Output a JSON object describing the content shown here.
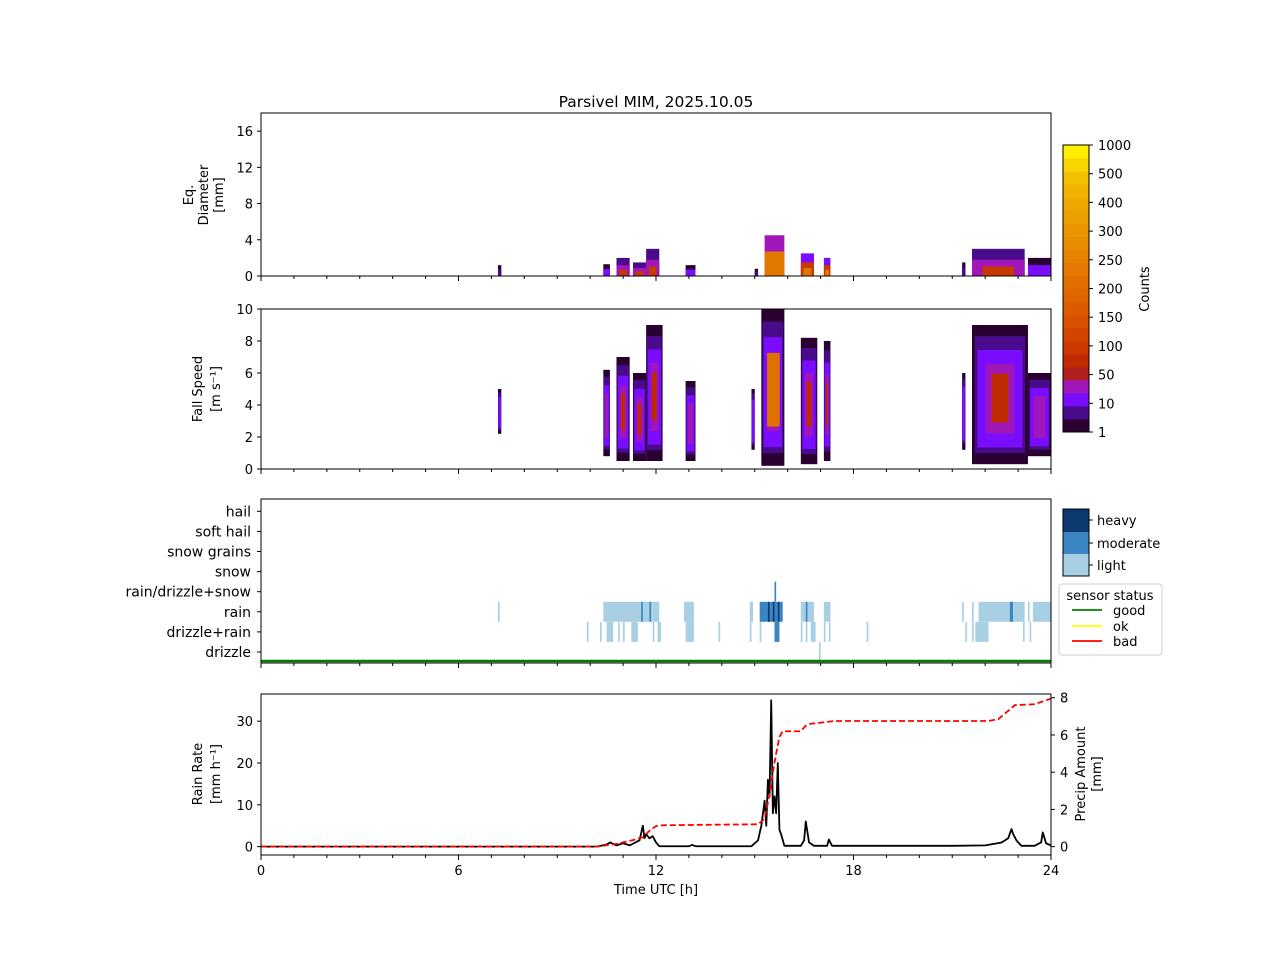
{
  "chart_data": [
    {
      "panel": "diameter",
      "type": "heatmap",
      "title": "Parsivel MIM, 2025.10.05",
      "ylabel": [
        "Eq.",
        "Diameter",
        "[mm]"
      ],
      "ylim": [
        0,
        18
      ],
      "yticks": [
        0,
        4,
        8,
        12,
        16
      ],
      "xlim": [
        0,
        24
      ],
      "events": [
        {
          "t0": 7.2,
          "t1": 7.3,
          "top": 1.2,
          "level": 1
        },
        {
          "t0": 10.4,
          "t1": 10.6,
          "top": 1.3,
          "level": 2
        },
        {
          "t0": 10.8,
          "t1": 11.2,
          "top": 2.0,
          "level": 3
        },
        {
          "t0": 11.3,
          "t1": 11.7,
          "top": 1.5,
          "level": 3
        },
        {
          "t0": 11.7,
          "t1": 12.1,
          "top": 3.0,
          "level": 3
        },
        {
          "t0": 12.9,
          "t1": 13.2,
          "top": 1.2,
          "level": 2
        },
        {
          "t0": 15.0,
          "t1": 15.1,
          "top": 0.8,
          "level": 1
        },
        {
          "t0": 15.3,
          "t1": 15.9,
          "top": 4.5,
          "level": 5
        },
        {
          "t0": 16.4,
          "t1": 16.8,
          "top": 2.5,
          "level": 4
        },
        {
          "t0": 17.1,
          "t1": 17.3,
          "top": 2.0,
          "level": 4
        },
        {
          "t0": 21.3,
          "t1": 21.4,
          "top": 1.5,
          "level": 1
        },
        {
          "t0": 21.6,
          "t1": 23.2,
          "top": 3.0,
          "level": 3
        },
        {
          "t0": 23.3,
          "t1": 24.0,
          "top": 2.0,
          "level": 2
        }
      ]
    },
    {
      "panel": "fall_speed",
      "type": "heatmap",
      "ylabel": [
        "Fall Speed",
        "[m s⁻¹]"
      ],
      "ylim": [
        0,
        10
      ],
      "yticks": [
        0,
        2,
        4,
        6,
        8,
        10
      ],
      "xlim": [
        0,
        24
      ],
      "events": [
        {
          "t0": 7.2,
          "t1": 7.3,
          "lo": 2.2,
          "hi": 5.0,
          "level": 1
        },
        {
          "t0": 10.4,
          "t1": 10.6,
          "lo": 0.8,
          "hi": 6.2,
          "level": 2
        },
        {
          "t0": 10.8,
          "t1": 11.2,
          "lo": 0.5,
          "hi": 7.0,
          "level": 3
        },
        {
          "t0": 11.3,
          "t1": 11.7,
          "lo": 0.5,
          "hi": 6.0,
          "level": 3
        },
        {
          "t0": 11.7,
          "t1": 12.2,
          "lo": 0.5,
          "hi": 9.0,
          "level": 3
        },
        {
          "t0": 12.9,
          "t1": 13.2,
          "lo": 0.5,
          "hi": 5.5,
          "level": 2
        },
        {
          "t0": 14.9,
          "t1": 15.0,
          "lo": 1.2,
          "hi": 5.0,
          "level": 1
        },
        {
          "t0": 15.2,
          "t1": 15.9,
          "lo": 0.2,
          "hi": 10.0,
          "level": 5
        },
        {
          "t0": 16.4,
          "t1": 16.9,
          "lo": 0.3,
          "hi": 8.2,
          "level": 4
        },
        {
          "t0": 17.1,
          "t1": 17.3,
          "lo": 0.5,
          "hi": 8.0,
          "level": 4
        },
        {
          "t0": 21.3,
          "t1": 21.4,
          "lo": 1.2,
          "hi": 6.0,
          "level": 1
        },
        {
          "t0": 21.6,
          "t1": 23.3,
          "lo": 0.3,
          "hi": 9.0,
          "level": 3
        },
        {
          "t0": 23.3,
          "t1": 24.0,
          "lo": 0.8,
          "hi": 6.0,
          "level": 2
        }
      ],
      "colorbar": {
        "label": "Counts",
        "ticks": [
          "1",
          "10",
          "50",
          "100",
          "150",
          "200",
          "250",
          "300",
          "400",
          "500",
          "1000"
        ],
        "colors": [
          "#2a0030",
          "#4a0a8c",
          "#7a0cff",
          "#a016b8",
          "#b01e1e",
          "#c02a00",
          "#cc3800",
          "#d24400",
          "#d85000",
          "#dc5a00",
          "#e06400",
          "#e26e00",
          "#e47800",
          "#e68200",
          "#e88c00",
          "#ea9600",
          "#eca000",
          "#eea800",
          "#f0b400",
          "#f2c000",
          "#f8d400",
          "#ffee00"
        ]
      }
    },
    {
      "panel": "precip_type",
      "type": "heatmap",
      "categories": [
        "drizzle",
        "drizzle+rain",
        "rain",
        "rain/drizzle+snow",
        "snow",
        "snow grains",
        "soft hail",
        "hail"
      ],
      "intensity_legend": [
        "heavy",
        "moderate",
        "light"
      ],
      "intensity_colors": {
        "light": "#a9cfe5",
        "moderate": "#3a86c2",
        "heavy": "#0c3a70"
      },
      "segments": [
        {
          "cat": 2,
          "t0": 7.2,
          "t1": 7.25,
          "i": "light"
        },
        {
          "cat": 2,
          "t0": 10.4,
          "t1": 11.9,
          "i": "light"
        },
        {
          "cat": 2,
          "t0": 11.55,
          "t1": 11.6,
          "i": "moderate"
        },
        {
          "cat": 2,
          "t0": 11.8,
          "t1": 11.85,
          "i": "moderate"
        },
        {
          "cat": 2,
          "t0": 11.9,
          "t1": 12.1,
          "i": "light"
        },
        {
          "cat": 2,
          "t0": 12.85,
          "t1": 13.15,
          "i": "light"
        },
        {
          "cat": 2,
          "t0": 14.85,
          "t1": 14.95,
          "i": "light"
        },
        {
          "cat": 2,
          "t0": 15.15,
          "t1": 15.85,
          "i": "moderate"
        },
        {
          "cat": 2,
          "t0": 15.4,
          "t1": 15.45,
          "i": "heavy"
        },
        {
          "cat": 2,
          "t0": 15.55,
          "t1": 15.6,
          "i": "heavy"
        },
        {
          "cat": 2,
          "t0": 15.7,
          "t1": 15.75,
          "i": "heavy"
        },
        {
          "cat": 2,
          "t0": 16.4,
          "t1": 16.8,
          "i": "light"
        },
        {
          "cat": 2,
          "t0": 16.55,
          "t1": 16.6,
          "i": "moderate"
        },
        {
          "cat": 2,
          "t0": 17.1,
          "t1": 17.3,
          "i": "light"
        },
        {
          "cat": 2,
          "t0": 21.3,
          "t1": 21.35,
          "i": "light"
        },
        {
          "cat": 2,
          "t0": 21.6,
          "t1": 21.65,
          "i": "light"
        },
        {
          "cat": 2,
          "t0": 21.8,
          "t1": 22.8,
          "i": "light"
        },
        {
          "cat": 2,
          "t0": 22.75,
          "t1": 22.85,
          "i": "moderate"
        },
        {
          "cat": 2,
          "t0": 22.85,
          "t1": 23.2,
          "i": "light"
        },
        {
          "cat": 2,
          "t0": 23.3,
          "t1": 23.35,
          "i": "light"
        },
        {
          "cat": 2,
          "t0": 23.45,
          "t1": 24.0,
          "i": "light"
        },
        {
          "cat": 3,
          "t0": 15.6,
          "t1": 15.65,
          "i": "moderate"
        },
        {
          "cat": 1,
          "t0": 9.9,
          "t1": 9.95,
          "i": "light"
        },
        {
          "cat": 1,
          "t0": 10.3,
          "t1": 10.35,
          "i": "light"
        },
        {
          "cat": 1,
          "t0": 10.5,
          "t1": 10.7,
          "i": "light"
        },
        {
          "cat": 1,
          "t0": 10.85,
          "t1": 10.9,
          "i": "light"
        },
        {
          "cat": 1,
          "t0": 11.0,
          "t1": 11.05,
          "i": "light"
        },
        {
          "cat": 1,
          "t0": 11.25,
          "t1": 11.45,
          "i": "light"
        },
        {
          "cat": 1,
          "t0": 11.9,
          "t1": 11.95,
          "i": "light"
        },
        {
          "cat": 1,
          "t0": 12.05,
          "t1": 12.15,
          "i": "light"
        },
        {
          "cat": 1,
          "t0": 12.9,
          "t1": 13.15,
          "i": "light"
        },
        {
          "cat": 1,
          "t0": 13.9,
          "t1": 13.95,
          "i": "light"
        },
        {
          "cat": 1,
          "t0": 14.85,
          "t1": 14.9,
          "i": "light"
        },
        {
          "cat": 1,
          "t0": 15.15,
          "t1": 15.2,
          "i": "light"
        },
        {
          "cat": 1,
          "t0": 15.6,
          "t1": 15.75,
          "i": "moderate"
        },
        {
          "cat": 1,
          "t0": 16.4,
          "t1": 16.45,
          "i": "light"
        },
        {
          "cat": 1,
          "t0": 16.55,
          "t1": 16.6,
          "i": "light"
        },
        {
          "cat": 1,
          "t0": 16.7,
          "t1": 16.85,
          "i": "light"
        },
        {
          "cat": 1,
          "t0": 17.1,
          "t1": 17.15,
          "i": "light"
        },
        {
          "cat": 1,
          "t0": 17.25,
          "t1": 17.3,
          "i": "light"
        },
        {
          "cat": 1,
          "t0": 18.4,
          "t1": 18.45,
          "i": "light"
        },
        {
          "cat": 1,
          "t0": 21.4,
          "t1": 21.45,
          "i": "light"
        },
        {
          "cat": 1,
          "t0": 21.6,
          "t1": 21.65,
          "i": "light"
        },
        {
          "cat": 1,
          "t0": 21.7,
          "t1": 22.1,
          "i": "light"
        },
        {
          "cat": 1,
          "t0": 23.15,
          "t1": 23.2,
          "i": "light"
        },
        {
          "cat": 1,
          "t0": 23.35,
          "t1": 23.4,
          "i": "light"
        },
        {
          "cat": 0,
          "t0": 16.95,
          "t1": 17.0,
          "i": "light"
        }
      ],
      "sensor_status": {
        "title": "sensor status",
        "entries": [
          {
            "label": "good",
            "color": "#008000"
          },
          {
            "label": "ok",
            "color": "#ffff00"
          },
          {
            "label": "bad",
            "color": "#ff0000"
          }
        ],
        "timeline_status": "good"
      }
    },
    {
      "panel": "rain",
      "type": "line",
      "xlabel": "Time UTC [h]",
      "xlim": [
        0,
        24
      ],
      "xticks": [
        0,
        6,
        12,
        18,
        24
      ],
      "series": [
        {
          "name": "Rain Rate",
          "axis": "left",
          "ylabel": [
            "Rain Rate",
            "[mm h⁻¹]"
          ],
          "ylim": [
            -2,
            36.5
          ],
          "yticks": [
            0,
            10,
            20,
            30
          ],
          "color": "#000000",
          "x": [
            0,
            10.2,
            10.5,
            10.6,
            10.8,
            11.0,
            11.2,
            11.5,
            11.6,
            11.65,
            11.7,
            11.8,
            11.9,
            12.0,
            12.1,
            13.0,
            13.1,
            13.2,
            14.9,
            15.1,
            15.2,
            15.3,
            15.35,
            15.4,
            15.45,
            15.5,
            15.55,
            15.6,
            15.65,
            15.7,
            15.75,
            15.8,
            15.9,
            16.4,
            16.5,
            16.55,
            16.65,
            16.8,
            17.2,
            17.25,
            17.35,
            21.0,
            22.0,
            22.5,
            22.7,
            22.8,
            22.85,
            22.95,
            23.1,
            23.5,
            23.7,
            23.75,
            23.85,
            24.0
          ],
          "y": [
            0,
            0,
            0.5,
            1.0,
            0.3,
            0.8,
            0.3,
            1.5,
            5.0,
            2.0,
            3.0,
            2.0,
            2.5,
            1.0,
            0.1,
            0.1,
            0.4,
            0.1,
            0.1,
            1.5,
            5.0,
            11.0,
            5.0,
            16.0,
            12.0,
            35.0,
            8.0,
            12.0,
            8.0,
            20.0,
            4.0,
            3.0,
            0.2,
            0.2,
            1.5,
            6.0,
            1.0,
            0.2,
            0.2,
            1.7,
            0.2,
            0.2,
            0.3,
            1.0,
            2.0,
            4.2,
            3.0,
            1.5,
            0.2,
            0.2,
            1.0,
            3.4,
            0.8,
            0.3
          ]
        },
        {
          "name": "Precip Amount",
          "axis": "right",
          "ylabel": [
            "Precip Amount",
            "[mm]"
          ],
          "ylim": [
            -0.45,
            8.2
          ],
          "yticks": [
            0,
            2,
            4,
            6,
            8
          ],
          "color": "#ff0000",
          "style": "dashed",
          "x": [
            0,
            10.2,
            10.8,
            11.3,
            11.6,
            11.8,
            12.0,
            12.2,
            15.1,
            15.3,
            15.45,
            15.55,
            15.65,
            15.75,
            15.85,
            16.4,
            16.55,
            16.7,
            17.2,
            17.4,
            22.1,
            22.4,
            22.7,
            22.9,
            23.5,
            24.0
          ],
          "y": [
            0,
            0,
            0.15,
            0.35,
            0.5,
            0.85,
            1.1,
            1.15,
            1.2,
            1.5,
            2.8,
            4.0,
            5.0,
            5.9,
            6.2,
            6.2,
            6.5,
            6.6,
            6.7,
            6.75,
            6.75,
            6.85,
            7.3,
            7.6,
            7.65,
            7.95
          ]
        }
      ]
    }
  ]
}
